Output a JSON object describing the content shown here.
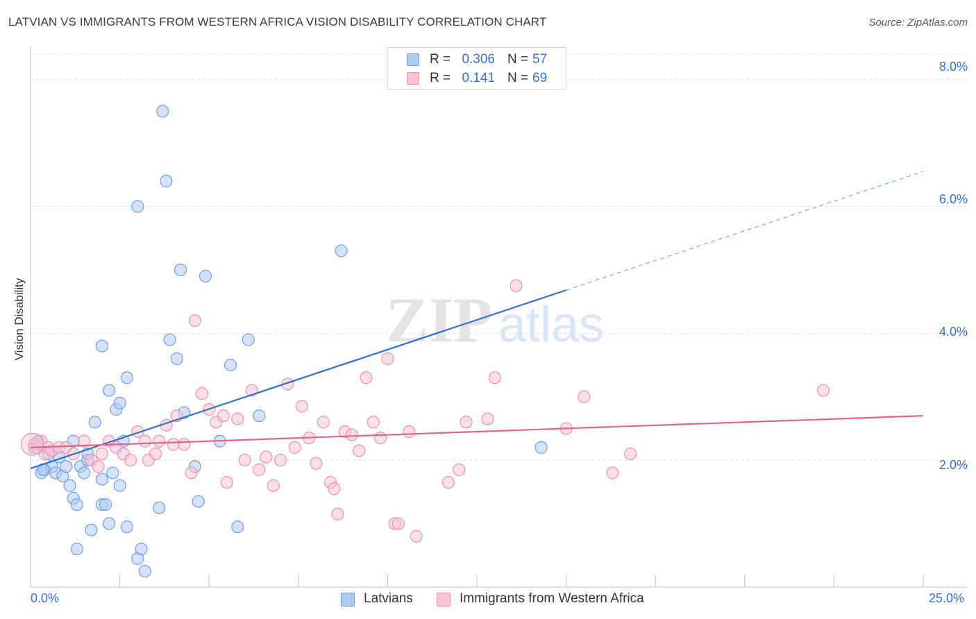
{
  "title": "LATVIAN VS IMMIGRANTS FROM WESTERN AFRICA VISION DISABILITY CORRELATION CHART",
  "source": "Source: ZipAtlas.com",
  "watermark": {
    "zip": "ZIP",
    "atlas": "atlas"
  },
  "legend": {
    "rows": [
      {
        "r_label": "R =",
        "r_value": "0.306",
        "n_label": "N =",
        "n_value": "57",
        "color": "#aecbf3",
        "border": "#6f9fe0"
      },
      {
        "r_label": "R =",
        "r_value": "0.141",
        "n_label": "N =",
        "n_value": "69",
        "color": "#f9c5d5",
        "border": "#ec8fab"
      }
    ]
  },
  "bottom_legend": [
    {
      "label": "Latvians",
      "color": "#aecbf3",
      "border": "#6f9fe0"
    },
    {
      "label": "Immigrants from Western Africa",
      "color": "#f9c5d5",
      "border": "#ec8fab"
    }
  ],
  "axis": {
    "ylabel": "Vision Disability",
    "x_min_label": "0.0%",
    "x_max_label": "25.0%",
    "y_ticks": [
      "2.0%",
      "4.0%",
      "6.0%",
      "8.0%"
    ]
  },
  "chart_data": {
    "type": "scatter",
    "title": "LATVIAN VS IMMIGRANTS FROM WESTERN AFRICA VISION DISABILITY CORRELATION CHART",
    "xlabel": "",
    "ylabel": "Vision Disability",
    "xlim": [
      0,
      25
    ],
    "ylim": [
      0,
      8.4
    ],
    "x_unit": "%",
    "y_unit": "%",
    "grid": {
      "horizontal": true,
      "vertical": false,
      "style": "dashed"
    },
    "legend_position": "top-center",
    "series": [
      {
        "name": "Latvians",
        "color": "#6f9fe0",
        "fill": "#aecbf3",
        "r": 0.306,
        "n": 57,
        "trend": {
          "x0": 0,
          "y0": 1.87,
          "x1": 15,
          "y1": 4.68,
          "dashed_to_x": 25,
          "dashed_to_y": 6.55,
          "color": "#2e6fd1"
        },
        "points": [
          [
            0.2,
            2.3
          ],
          [
            0.3,
            1.8
          ],
          [
            0.4,
            1.85
          ],
          [
            0.5,
            2.1
          ],
          [
            0.6,
            1.9
          ],
          [
            0.7,
            1.8
          ],
          [
            0.8,
            2.05
          ],
          [
            0.9,
            1.75
          ],
          [
            1.0,
            1.9
          ],
          [
            1.1,
            1.6
          ],
          [
            1.2,
            1.4
          ],
          [
            1.3,
            1.3
          ],
          [
            1.2,
            2.3
          ],
          [
            1.4,
            1.9
          ],
          [
            1.5,
            1.8
          ],
          [
            1.6,
            2.0
          ],
          [
            1.6,
            2.1
          ],
          [
            1.8,
            2.6
          ],
          [
            1.7,
            0.9
          ],
          [
            2.0,
            1.7
          ],
          [
            2.0,
            1.3
          ],
          [
            2.1,
            1.3
          ],
          [
            2.2,
            1.0
          ],
          [
            2.3,
            1.8
          ],
          [
            2.5,
            1.6
          ],
          [
            2.4,
            2.8
          ],
          [
            2.2,
            3.1
          ],
          [
            2.5,
            2.9
          ],
          [
            2.0,
            3.8
          ],
          [
            1.3,
            0.6
          ],
          [
            2.7,
            3.3
          ],
          [
            2.6,
            2.3
          ],
          [
            2.7,
            0.95
          ],
          [
            3.0,
            6.0
          ],
          [
            3.0,
            0.45
          ],
          [
            3.1,
            0.6
          ],
          [
            3.2,
            0.25
          ],
          [
            3.6,
            1.25
          ],
          [
            3.7,
            7.5
          ],
          [
            3.8,
            6.4
          ],
          [
            3.9,
            3.9
          ],
          [
            4.1,
            3.6
          ],
          [
            4.2,
            5.0
          ],
          [
            4.3,
            2.75
          ],
          [
            4.6,
            1.9
          ],
          [
            4.7,
            1.35
          ],
          [
            4.9,
            4.9
          ],
          [
            5.3,
            2.3
          ],
          [
            5.6,
            3.5
          ],
          [
            5.8,
            0.95
          ],
          [
            6.1,
            3.9
          ],
          [
            6.4,
            2.7
          ],
          [
            8.7,
            5.3
          ],
          [
            14.3,
            2.2
          ],
          [
            0.1,
            2.2
          ],
          [
            0.15,
            2.25
          ],
          [
            0.35,
            1.85
          ]
        ]
      },
      {
        "name": "Immigrants from Western Africa",
        "color": "#ec8fab",
        "fill": "#f9c5d5",
        "r": 0.141,
        "n": 69,
        "trend": {
          "x0": 0,
          "y0": 2.2,
          "x1": 25,
          "y1": 2.7,
          "color": "#e0648f"
        },
        "points": [
          [
            0.1,
            2.25
          ],
          [
            0.2,
            2.2
          ],
          [
            0.3,
            2.3
          ],
          [
            0.4,
            2.1
          ],
          [
            0.5,
            2.2
          ],
          [
            0.6,
            2.15
          ],
          [
            0.8,
            2.2
          ],
          [
            1.0,
            2.2
          ],
          [
            1.2,
            2.1
          ],
          [
            1.5,
            2.3
          ],
          [
            1.7,
            2.0
          ],
          [
            1.9,
            1.9
          ],
          [
            2.0,
            2.1
          ],
          [
            2.2,
            2.3
          ],
          [
            2.4,
            2.2
          ],
          [
            2.6,
            2.1
          ],
          [
            2.8,
            2.0
          ],
          [
            3.0,
            2.45
          ],
          [
            3.2,
            2.3
          ],
          [
            3.3,
            2.0
          ],
          [
            3.5,
            2.1
          ],
          [
            3.6,
            2.3
          ],
          [
            3.8,
            2.55
          ],
          [
            4.0,
            2.25
          ],
          [
            4.1,
            2.7
          ],
          [
            4.3,
            2.25
          ],
          [
            4.5,
            1.8
          ],
          [
            4.6,
            4.2
          ],
          [
            4.8,
            3.05
          ],
          [
            5.0,
            2.8
          ],
          [
            5.2,
            2.6
          ],
          [
            5.4,
            2.7
          ],
          [
            5.5,
            1.65
          ],
          [
            5.8,
            2.65
          ],
          [
            6.0,
            2.0
          ],
          [
            6.2,
            3.1
          ],
          [
            6.4,
            1.85
          ],
          [
            6.6,
            2.05
          ],
          [
            6.8,
            1.6
          ],
          [
            7.0,
            2.0
          ],
          [
            7.2,
            3.2
          ],
          [
            7.4,
            2.2
          ],
          [
            7.6,
            2.85
          ],
          [
            7.8,
            2.35
          ],
          [
            8.0,
            1.95
          ],
          [
            8.2,
            2.6
          ],
          [
            8.4,
            1.65
          ],
          [
            8.5,
            1.55
          ],
          [
            8.6,
            1.15
          ],
          [
            8.8,
            2.45
          ],
          [
            9.0,
            2.4
          ],
          [
            9.2,
            2.15
          ],
          [
            9.4,
            3.3
          ],
          [
            9.6,
            2.6
          ],
          [
            9.8,
            2.35
          ],
          [
            10.0,
            3.6
          ],
          [
            10.2,
            1.0
          ],
          [
            10.3,
            1.0
          ],
          [
            10.6,
            2.45
          ],
          [
            10.8,
            0.8
          ],
          [
            11.7,
            1.65
          ],
          [
            12.0,
            1.85
          ],
          [
            12.2,
            2.6
          ],
          [
            12.8,
            2.65
          ],
          [
            13.0,
            3.3
          ],
          [
            13.6,
            4.75
          ],
          [
            15.0,
            2.5
          ],
          [
            15.5,
            3.0
          ],
          [
            16.3,
            1.8
          ]
        ]
      }
    ],
    "extra_pink": [
      [
        16.8,
        2.1
      ],
      [
        22.2,
        3.1
      ]
    ]
  }
}
